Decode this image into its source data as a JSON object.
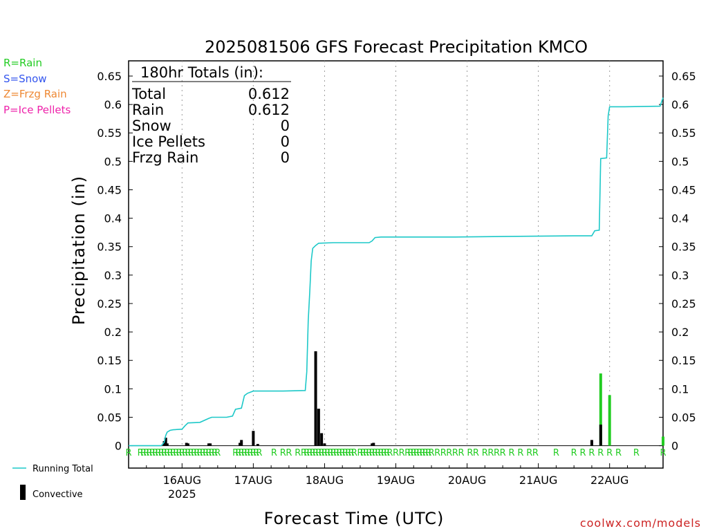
{
  "chart_data": {
    "type": "bar",
    "title": "2025081506 GFS Forecast Precipitation KMCO",
    "ylabel": "Precipitation (in)",
    "xlabel": "Forecast Time (UTC)",
    "ylim": [
      0,
      0.65
    ],
    "xlim_hours": [
      0,
      180
    ],
    "y_ticks": [
      "0",
      "0.05",
      "0.1",
      "0.15",
      "0.2",
      "0.25",
      "0.3",
      "0.35",
      "0.4",
      "0.45",
      "0.5",
      "0.55",
      "0.6",
      "0.65"
    ],
    "x_ticks": [
      {
        "hour": 18,
        "label": "16AUG",
        "sublabel": "2025"
      },
      {
        "hour": 42,
        "label": "17AUG",
        "sublabel": ""
      },
      {
        "hour": 66,
        "label": "18AUG",
        "sublabel": ""
      },
      {
        "hour": 90,
        "label": "19AUG",
        "sublabel": ""
      },
      {
        "hour": 114,
        "label": "20AUG",
        "sublabel": ""
      },
      {
        "hour": 138,
        "label": "21AUG",
        "sublabel": ""
      },
      {
        "hour": 162,
        "label": "22AUG",
        "sublabel": ""
      }
    ],
    "grid": "vertical-dotted",
    "ptype_legend": [
      {
        "label": "R=Rain",
        "color": "#22cc22"
      },
      {
        "label": "S=Snow",
        "color": "#3355ee"
      },
      {
        "label": "Z=Frzg Rain",
        "color": "#ee8833"
      },
      {
        "label": "P=Ice Pellets",
        "color": "#ee22aa"
      }
    ],
    "bottom_legend": {
      "running_total": "Running Total",
      "convective": "Convective"
    },
    "totals": {
      "header": "180hr Totals (in):",
      "rows": [
        {
          "label": "Total",
          "value": "0.612"
        },
        {
          "label": "Rain",
          "value": "0.612"
        },
        {
          "label": "Snow",
          "value": "0"
        },
        {
          "label": "Ice Pellets",
          "value": "0"
        },
        {
          "label": "Frzg Rain",
          "value": "0"
        }
      ]
    },
    "colors": {
      "running_total": "#1cc8c8",
      "rain_bar": "#22cc22",
      "convective": "#000000",
      "rain_marker": "#22cc22",
      "credit": "#cc2222"
    },
    "running_total": [
      [
        0,
        0
      ],
      [
        11,
        0
      ],
      [
        12,
        0.006
      ],
      [
        12.5,
        0.018
      ],
      [
        13,
        0.024
      ],
      [
        14,
        0.027
      ],
      [
        15,
        0.028
      ],
      [
        18,
        0.029
      ],
      [
        19,
        0.035
      ],
      [
        20,
        0.04
      ],
      [
        24,
        0.041
      ],
      [
        27,
        0.048
      ],
      [
        28,
        0.05
      ],
      [
        33,
        0.05
      ],
      [
        35,
        0.052
      ],
      [
        36,
        0.064
      ],
      [
        38,
        0.066
      ],
      [
        39,
        0.088
      ],
      [
        40,
        0.092
      ],
      [
        41,
        0.094
      ],
      [
        42,
        0.096
      ],
      [
        48,
        0.096
      ],
      [
        52,
        0.096
      ],
      [
        59.5,
        0.097
      ],
      [
        60,
        0.13
      ],
      [
        60.5,
        0.22
      ],
      [
        61,
        0.27
      ],
      [
        61.5,
        0.325
      ],
      [
        62,
        0.347
      ],
      [
        63,
        0.352
      ],
      [
        64,
        0.356
      ],
      [
        69,
        0.357
      ],
      [
        81,
        0.357
      ],
      [
        82,
        0.36
      ],
      [
        83,
        0.366
      ],
      [
        85,
        0.367
      ],
      [
        110,
        0.367
      ],
      [
        128,
        0.368
      ],
      [
        150,
        0.369
      ],
      [
        156,
        0.369
      ],
      [
        157,
        0.378
      ],
      [
        158.5,
        0.379
      ],
      [
        159,
        0.505
      ],
      [
        161,
        0.506
      ],
      [
        161.5,
        0.58
      ],
      [
        162,
        0.596
      ],
      [
        167,
        0.596
      ],
      [
        179,
        0.597
      ],
      [
        180,
        0.612
      ]
    ],
    "bars": [
      {
        "hour": 12,
        "rain": 0.008,
        "conv": 0.008
      },
      {
        "hour": 12.5,
        "rain": 0.014,
        "conv": 0.014
      },
      {
        "hour": 13,
        "rain": 0.004,
        "conv": 0.004
      },
      {
        "hour": 19.5,
        "rain": 0.005,
        "conv": 0.005
      },
      {
        "hour": 20,
        "rain": 0.004,
        "conv": 0.004
      },
      {
        "hour": 27,
        "rain": 0.004,
        "conv": 0.004
      },
      {
        "hour": 27.5,
        "rain": 0.004,
        "conv": 0.004
      },
      {
        "hour": 37.5,
        "rain": 0.005,
        "conv": 0.005
      },
      {
        "hour": 38,
        "rain": 0.01,
        "conv": 0.01
      },
      {
        "hour": 42,
        "rain": 0.026,
        "conv": 0.026
      },
      {
        "hour": 43.5,
        "rain": 0.003,
        "conv": 0.003
      },
      {
        "hour": 63,
        "rain": 0.166,
        "conv": 0.166
      },
      {
        "hour": 64,
        "rain": 0.065,
        "conv": 0.065
      },
      {
        "hour": 65,
        "rain": 0.022,
        "conv": 0.022
      },
      {
        "hour": 66,
        "rain": 0.004,
        "conv": 0.004
      },
      {
        "hour": 82,
        "rain": 0.004,
        "conv": 0.004
      },
      {
        "hour": 82.5,
        "rain": 0.005,
        "conv": 0.005
      },
      {
        "hour": 156,
        "rain": 0.01,
        "conv": 0.01
      },
      {
        "hour": 159,
        "rain": 0.127,
        "conv": 0.037
      },
      {
        "hour": 162,
        "rain": 0.089,
        "conv": 0.0
      },
      {
        "hour": 180,
        "rain": 0.016,
        "conv": 0.0
      }
    ],
    "rain_markers": {
      "letter": "R",
      "hours": [
        0,
        4,
        5,
        6,
        7,
        8,
        9,
        10,
        11,
        12,
        13,
        14,
        15,
        16,
        17,
        18,
        19,
        20,
        21,
        22,
        23,
        24,
        25,
        26,
        27,
        28,
        29,
        30,
        36,
        37,
        38,
        39,
        40,
        41,
        42,
        43,
        44,
        49,
        52,
        54,
        57,
        59,
        60,
        61,
        62,
        63,
        64,
        65,
        66,
        67,
        68,
        69,
        70,
        71,
        72,
        73,
        74,
        75,
        76,
        78,
        79,
        80,
        81,
        82,
        83,
        84,
        85,
        86,
        87,
        88,
        90,
        92,
        94,
        95,
        96,
        97,
        98,
        99,
        100,
        101,
        102,
        104,
        106,
        108,
        110,
        112,
        115,
        117,
        120,
        122,
        124,
        126,
        129,
        132,
        135,
        137,
        144,
        150,
        153,
        156,
        159,
        162,
        165,
        171,
        180
      ]
    },
    "credit": "coolwx.com/models"
  }
}
